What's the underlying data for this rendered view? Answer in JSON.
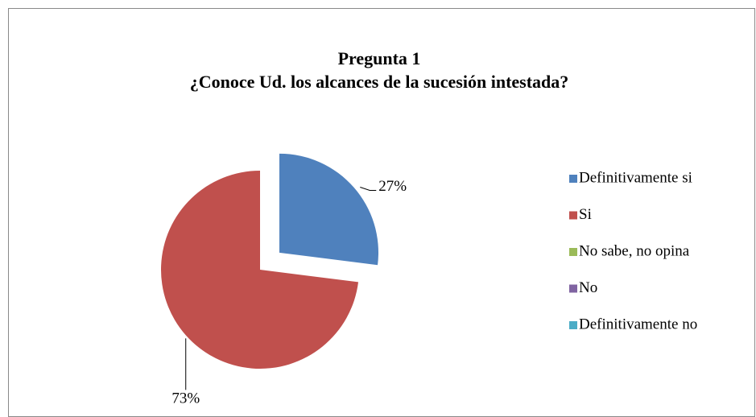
{
  "chart_data": {
    "type": "pie",
    "title": "Pregunta 1",
    "subtitle": "¿Conoce Ud. los alcances de la sucesión intestada?",
    "categories": [
      "Definitivamente si",
      "Si",
      "No sabe, no opina",
      "No",
      "Definitivamente no"
    ],
    "values": [
      27,
      73,
      0,
      0,
      0
    ],
    "value_labels": [
      "27%",
      "73%",
      null,
      null,
      null
    ],
    "colors": [
      "#4f81bd",
      "#c0504d",
      "#9bbb59",
      "#8064a2",
      "#4bacc6"
    ],
    "legend": "right"
  }
}
